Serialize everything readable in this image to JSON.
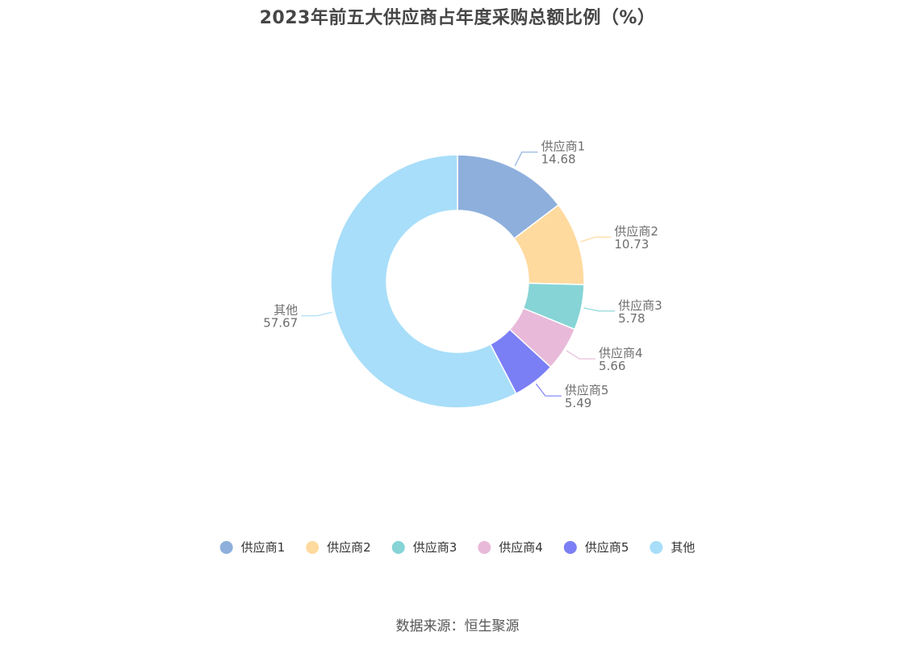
{
  "chart_data": {
    "type": "pie",
    "donut": true,
    "title": "2023年前五大供应商占年度采购总额比例（%）",
    "categories": [
      "供应商1",
      "供应商2",
      "供应商3",
      "供应商4",
      "供应商5",
      "其他"
    ],
    "values": [
      14.68,
      10.73,
      5.78,
      5.66,
      5.49,
      57.67
    ],
    "value_labels": [
      "14.68",
      "10.73",
      "5.78",
      "5.66",
      "5.49",
      "57.67"
    ],
    "colors": [
      "#8EAFDC",
      "#FFDA9F",
      "#86D4D6",
      "#E8B9D9",
      "#7B7FF5",
      "#A8DEF9"
    ],
    "start_angle": "top",
    "direction": "clockwise",
    "legend": {
      "position": "bottom",
      "items": [
        "供应商1",
        "供应商2",
        "供应商3",
        "供应商4",
        "供应商5",
        "其他"
      ]
    }
  },
  "source": "数据来源：恒生聚源"
}
